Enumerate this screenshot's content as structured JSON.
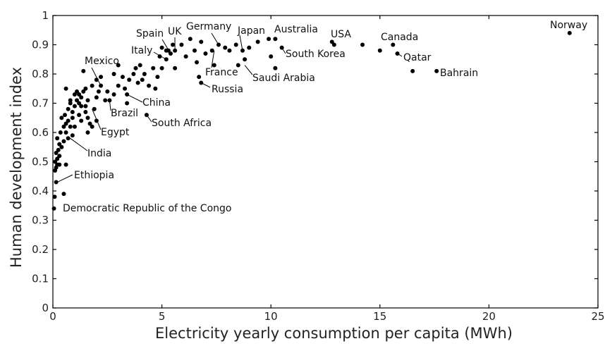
{
  "chart_data": {
    "type": "scatter",
    "title": "",
    "xlabel": "Electricity yearly consumption per capita (MWh)",
    "ylabel": "Human development index",
    "xlim": [
      0,
      25
    ],
    "ylim": [
      0,
      1
    ],
    "xticks": [
      0,
      5,
      10,
      15,
      20,
      25
    ],
    "yticks": [
      0,
      0.1,
      0.2,
      0.3,
      0.4,
      0.5,
      0.6,
      0.7,
      0.8,
      0.9,
      1
    ],
    "grid": false,
    "points": [
      [
        0.05,
        0.34
      ],
      [
        0.08,
        0.38
      ],
      [
        0.5,
        0.39
      ],
      [
        0.15,
        0.43
      ],
      [
        0.1,
        0.47
      ],
      [
        0.15,
        0.48
      ],
      [
        0.2,
        0.49
      ],
      [
        0.3,
        0.49
      ],
      [
        0.1,
        0.5
      ],
      [
        0.2,
        0.51
      ],
      [
        0.3,
        0.52
      ],
      [
        0.15,
        0.53
      ],
      [
        0.25,
        0.54
      ],
      [
        0.4,
        0.55
      ],
      [
        0.6,
        0.49
      ],
      [
        0.3,
        0.56
      ],
      [
        0.5,
        0.57
      ],
      [
        0.2,
        0.58
      ],
      [
        0.35,
        0.6
      ],
      [
        0.7,
        0.58
      ],
      [
        0.6,
        0.6
      ],
      [
        0.5,
        0.62
      ],
      [
        0.8,
        0.62
      ],
      [
        0.6,
        0.63
      ],
      [
        0.7,
        0.64
      ],
      [
        0.55,
        0.66
      ],
      [
        0.9,
        0.65
      ],
      [
        1.0,
        0.62
      ],
      [
        0.7,
        0.68
      ],
      [
        0.9,
        0.67
      ],
      [
        0.8,
        0.7
      ],
      [
        1.1,
        0.71
      ],
      [
        1.2,
        0.7
      ],
      [
        1.3,
        0.69
      ],
      [
        1.5,
        0.67
      ],
      [
        1.6,
        0.65
      ],
      [
        1.7,
        0.63
      ],
      [
        1.8,
        0.62
      ],
      [
        1.3,
        0.72
      ],
      [
        1.4,
        0.74
      ],
      [
        1.2,
        0.73
      ],
      [
        1.5,
        0.75
      ],
      [
        1.6,
        0.71
      ],
      [
        1.9,
        0.68
      ],
      [
        2.0,
        0.72
      ],
      [
        2.1,
        0.74
      ],
      [
        2.2,
        0.76
      ],
      [
        1.8,
        0.76
      ],
      [
        2.0,
        0.78
      ],
      [
        1.4,
        0.81
      ],
      [
        2.5,
        0.74
      ],
      [
        2.8,
        0.73
      ],
      [
        2.6,
        0.71
      ],
      [
        3.0,
        0.76
      ],
      [
        3.2,
        0.79
      ],
      [
        3.3,
        0.75
      ],
      [
        3.5,
        0.78
      ],
      [
        3.7,
        0.8
      ],
      [
        3.8,
        0.82
      ],
      [
        4.0,
        0.83
      ],
      [
        4.2,
        0.8
      ],
      [
        3.9,
        0.77
      ],
      [
        4.4,
        0.76
      ],
      [
        4.6,
        0.82
      ],
      [
        4.8,
        0.79
      ],
      [
        5.0,
        0.82
      ],
      [
        5.2,
        0.85
      ],
      [
        5.3,
        0.88
      ],
      [
        5.4,
        0.87
      ],
      [
        5.6,
        0.88
      ],
      [
        5.9,
        0.9
      ],
      [
        6.1,
        0.86
      ],
      [
        6.5,
        0.88
      ],
      [
        6.8,
        0.91
      ],
      [
        7.0,
        0.87
      ],
      [
        7.3,
        0.88
      ],
      [
        7.6,
        0.9
      ],
      [
        7.9,
        0.89
      ],
      [
        8.1,
        0.88
      ],
      [
        8.4,
        0.9
      ],
      [
        8.7,
        0.88
      ],
      [
        9.0,
        0.89
      ],
      [
        9.4,
        0.91
      ],
      [
        3.4,
        0.73
      ],
      [
        4.3,
        0.66
      ],
      [
        6.7,
        0.79
      ],
      [
        6.8,
        0.77
      ],
      [
        10.2,
        0.82
      ],
      [
        10.2,
        0.92
      ],
      [
        10.5,
        0.89
      ],
      [
        12.8,
        0.91
      ],
      [
        14.2,
        0.9
      ],
      [
        15.6,
        0.9
      ],
      [
        15.8,
        0.87
      ],
      [
        16.5,
        0.81
      ],
      [
        17.6,
        0.81
      ],
      [
        23.7,
        0.94
      ],
      [
        0.6,
        0.75
      ],
      [
        0.8,
        0.71
      ],
      [
        1.0,
        0.73
      ],
      [
        1.1,
        0.74
      ],
      [
        2.4,
        0.71
      ],
      [
        3.4,
        0.7
      ],
      [
        2.2,
        0.79
      ],
      [
        2.8,
        0.8
      ],
      [
        3.0,
        0.83
      ],
      [
        4.9,
        0.86
      ],
      [
        5.2,
        0.88
      ],
      [
        6.6,
        0.84
      ],
      [
        7.4,
        0.83
      ],
      [
        8.5,
        0.83
      ],
      [
        8.8,
        0.85
      ],
      [
        12.9,
        0.9
      ],
      [
        15.0,
        0.88
      ],
      [
        1.0,
        0.69
      ],
      [
        1.2,
        0.66
      ],
      [
        1.5,
        0.69
      ],
      [
        1.3,
        0.64
      ],
      [
        0.4,
        0.65
      ],
      [
        0.9,
        0.59
      ],
      [
        1.6,
        0.6
      ],
      [
        2.0,
        0.64
      ],
      [
        5.5,
        0.9
      ],
      [
        6.3,
        0.92
      ],
      [
        9.9,
        0.92
      ],
      [
        10.0,
        0.86
      ],
      [
        5.0,
        0.89
      ],
      [
        5.6,
        0.82
      ],
      [
        4.1,
        0.78
      ],
      [
        4.7,
        0.75
      ]
    ],
    "annotations": [
      {
        "label": "Norway"
      },
      {
        "label": "USA"
      },
      {
        "label": "Australia"
      },
      {
        "label": "Canada"
      },
      {
        "label": "Qatar"
      },
      {
        "label": "Bahrain"
      },
      {
        "label": "Japan"
      },
      {
        "label": "Germany"
      },
      {
        "label": "UK"
      },
      {
        "label": "Spain"
      },
      {
        "label": "Italy"
      },
      {
        "label": "France"
      },
      {
        "label": "South Korea"
      },
      {
        "label": "Saudi Arabia"
      },
      {
        "label": "Russia"
      },
      {
        "label": "Mexico"
      },
      {
        "label": "Brazil"
      },
      {
        "label": "China"
      },
      {
        "label": "South Africa"
      },
      {
        "label": "Egypt"
      },
      {
        "label": "India"
      },
      {
        "label": "Ethiopia"
      },
      {
        "label": "Democratic Republic of the Congo"
      }
    ]
  }
}
